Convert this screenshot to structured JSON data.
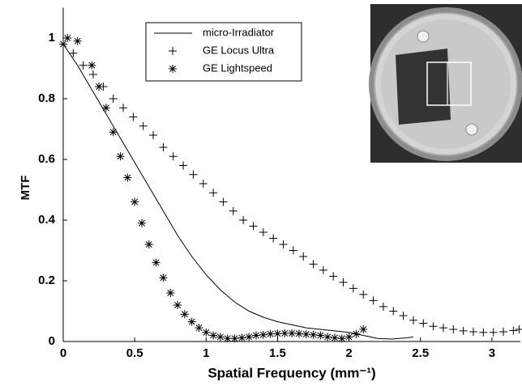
{
  "chart_data": {
    "type": "line",
    "x_label": "Spatial Frequency (mm⁻¹)",
    "y_label": "MTF",
    "xlim": [
      0,
      3.2
    ],
    "ylim": [
      0,
      1.1
    ],
    "xticks": [
      0,
      0.5,
      1,
      1.5,
      2,
      2.5,
      3
    ],
    "yticks": [
      0,
      0.2,
      0.4,
      0.6,
      0.8,
      1
    ],
    "grid": false,
    "legend": "upper center",
    "series": [
      {
        "name": "micro-Irradiator",
        "color": "#000000",
        "style": "line",
        "x": [
          0,
          0.1,
          0.2,
          0.3,
          0.4,
          0.5,
          0.6,
          0.7,
          0.8,
          0.9,
          1.0,
          1.1,
          1.2,
          1.3,
          1.4,
          1.5,
          1.6,
          1.7,
          1.8,
          1.9,
          2.0,
          2.1,
          2.2,
          2.3,
          2.4,
          2.45
        ],
        "values": [
          0.98,
          0.91,
          0.83,
          0.75,
          0.67,
          0.59,
          0.51,
          0.43,
          0.35,
          0.28,
          0.22,
          0.17,
          0.13,
          0.1,
          0.08,
          0.065,
          0.055,
          0.045,
          0.04,
          0.035,
          0.03,
          0.02,
          0.01,
          0.008,
          0.012,
          0.015
        ]
      },
      {
        "name": "GE Locus Ultra",
        "color": "#000000",
        "style": "plus",
        "x": [
          0,
          0.07,
          0.14,
          0.21,
          0.28,
          0.35,
          0.42,
          0.49,
          0.56,
          0.63,
          0.7,
          0.77,
          0.84,
          0.91,
          0.98,
          1.05,
          1.12,
          1.19,
          1.26,
          1.33,
          1.4,
          1.47,
          1.54,
          1.61,
          1.68,
          1.75,
          1.82,
          1.89,
          1.96,
          2.03,
          2.1,
          2.17,
          2.24,
          2.31,
          2.38,
          2.45,
          2.52,
          2.59,
          2.66,
          2.73,
          2.8,
          2.87,
          2.94,
          3.01,
          3.08,
          3.15,
          3.19
        ],
        "values": [
          0.98,
          0.95,
          0.91,
          0.88,
          0.84,
          0.8,
          0.77,
          0.74,
          0.71,
          0.68,
          0.64,
          0.61,
          0.58,
          0.55,
          0.52,
          0.49,
          0.46,
          0.43,
          0.4,
          0.38,
          0.36,
          0.34,
          0.32,
          0.3,
          0.28,
          0.255,
          0.235,
          0.215,
          0.195,
          0.175,
          0.155,
          0.135,
          0.115,
          0.1,
          0.085,
          0.07,
          0.06,
          0.05,
          0.045,
          0.04,
          0.035,
          0.032,
          0.03,
          0.03,
          0.032,
          0.036,
          0.04
        ]
      },
      {
        "name": "GE Lightspeed",
        "color": "#000000",
        "style": "star",
        "x": [
          0,
          0.03,
          0.1,
          0.2,
          0.25,
          0.3,
          0.35,
          0.4,
          0.45,
          0.5,
          0.55,
          0.6,
          0.65,
          0.7,
          0.75,
          0.8,
          0.85,
          0.9,
          0.95,
          1.0,
          1.05,
          1.1,
          1.15,
          1.2,
          1.25,
          1.3,
          1.35,
          1.4,
          1.45,
          1.5,
          1.55,
          1.6,
          1.65,
          1.7,
          1.75,
          1.8,
          1.85,
          1.9,
          1.95,
          2.0,
          2.05,
          2.1
        ],
        "values": [
          0.98,
          1.0,
          0.99,
          0.91,
          0.84,
          0.77,
          0.69,
          0.61,
          0.54,
          0.46,
          0.39,
          0.32,
          0.26,
          0.21,
          0.16,
          0.12,
          0.09,
          0.065,
          0.045,
          0.03,
          0.02,
          0.015,
          0.01,
          0.01,
          0.012,
          0.015,
          0.02,
          0.022,
          0.025,
          0.026,
          0.027,
          0.027,
          0.026,
          0.024,
          0.022,
          0.02,
          0.015,
          0.012,
          0.01,
          0.015,
          0.025,
          0.04
        ]
      }
    ]
  }
}
